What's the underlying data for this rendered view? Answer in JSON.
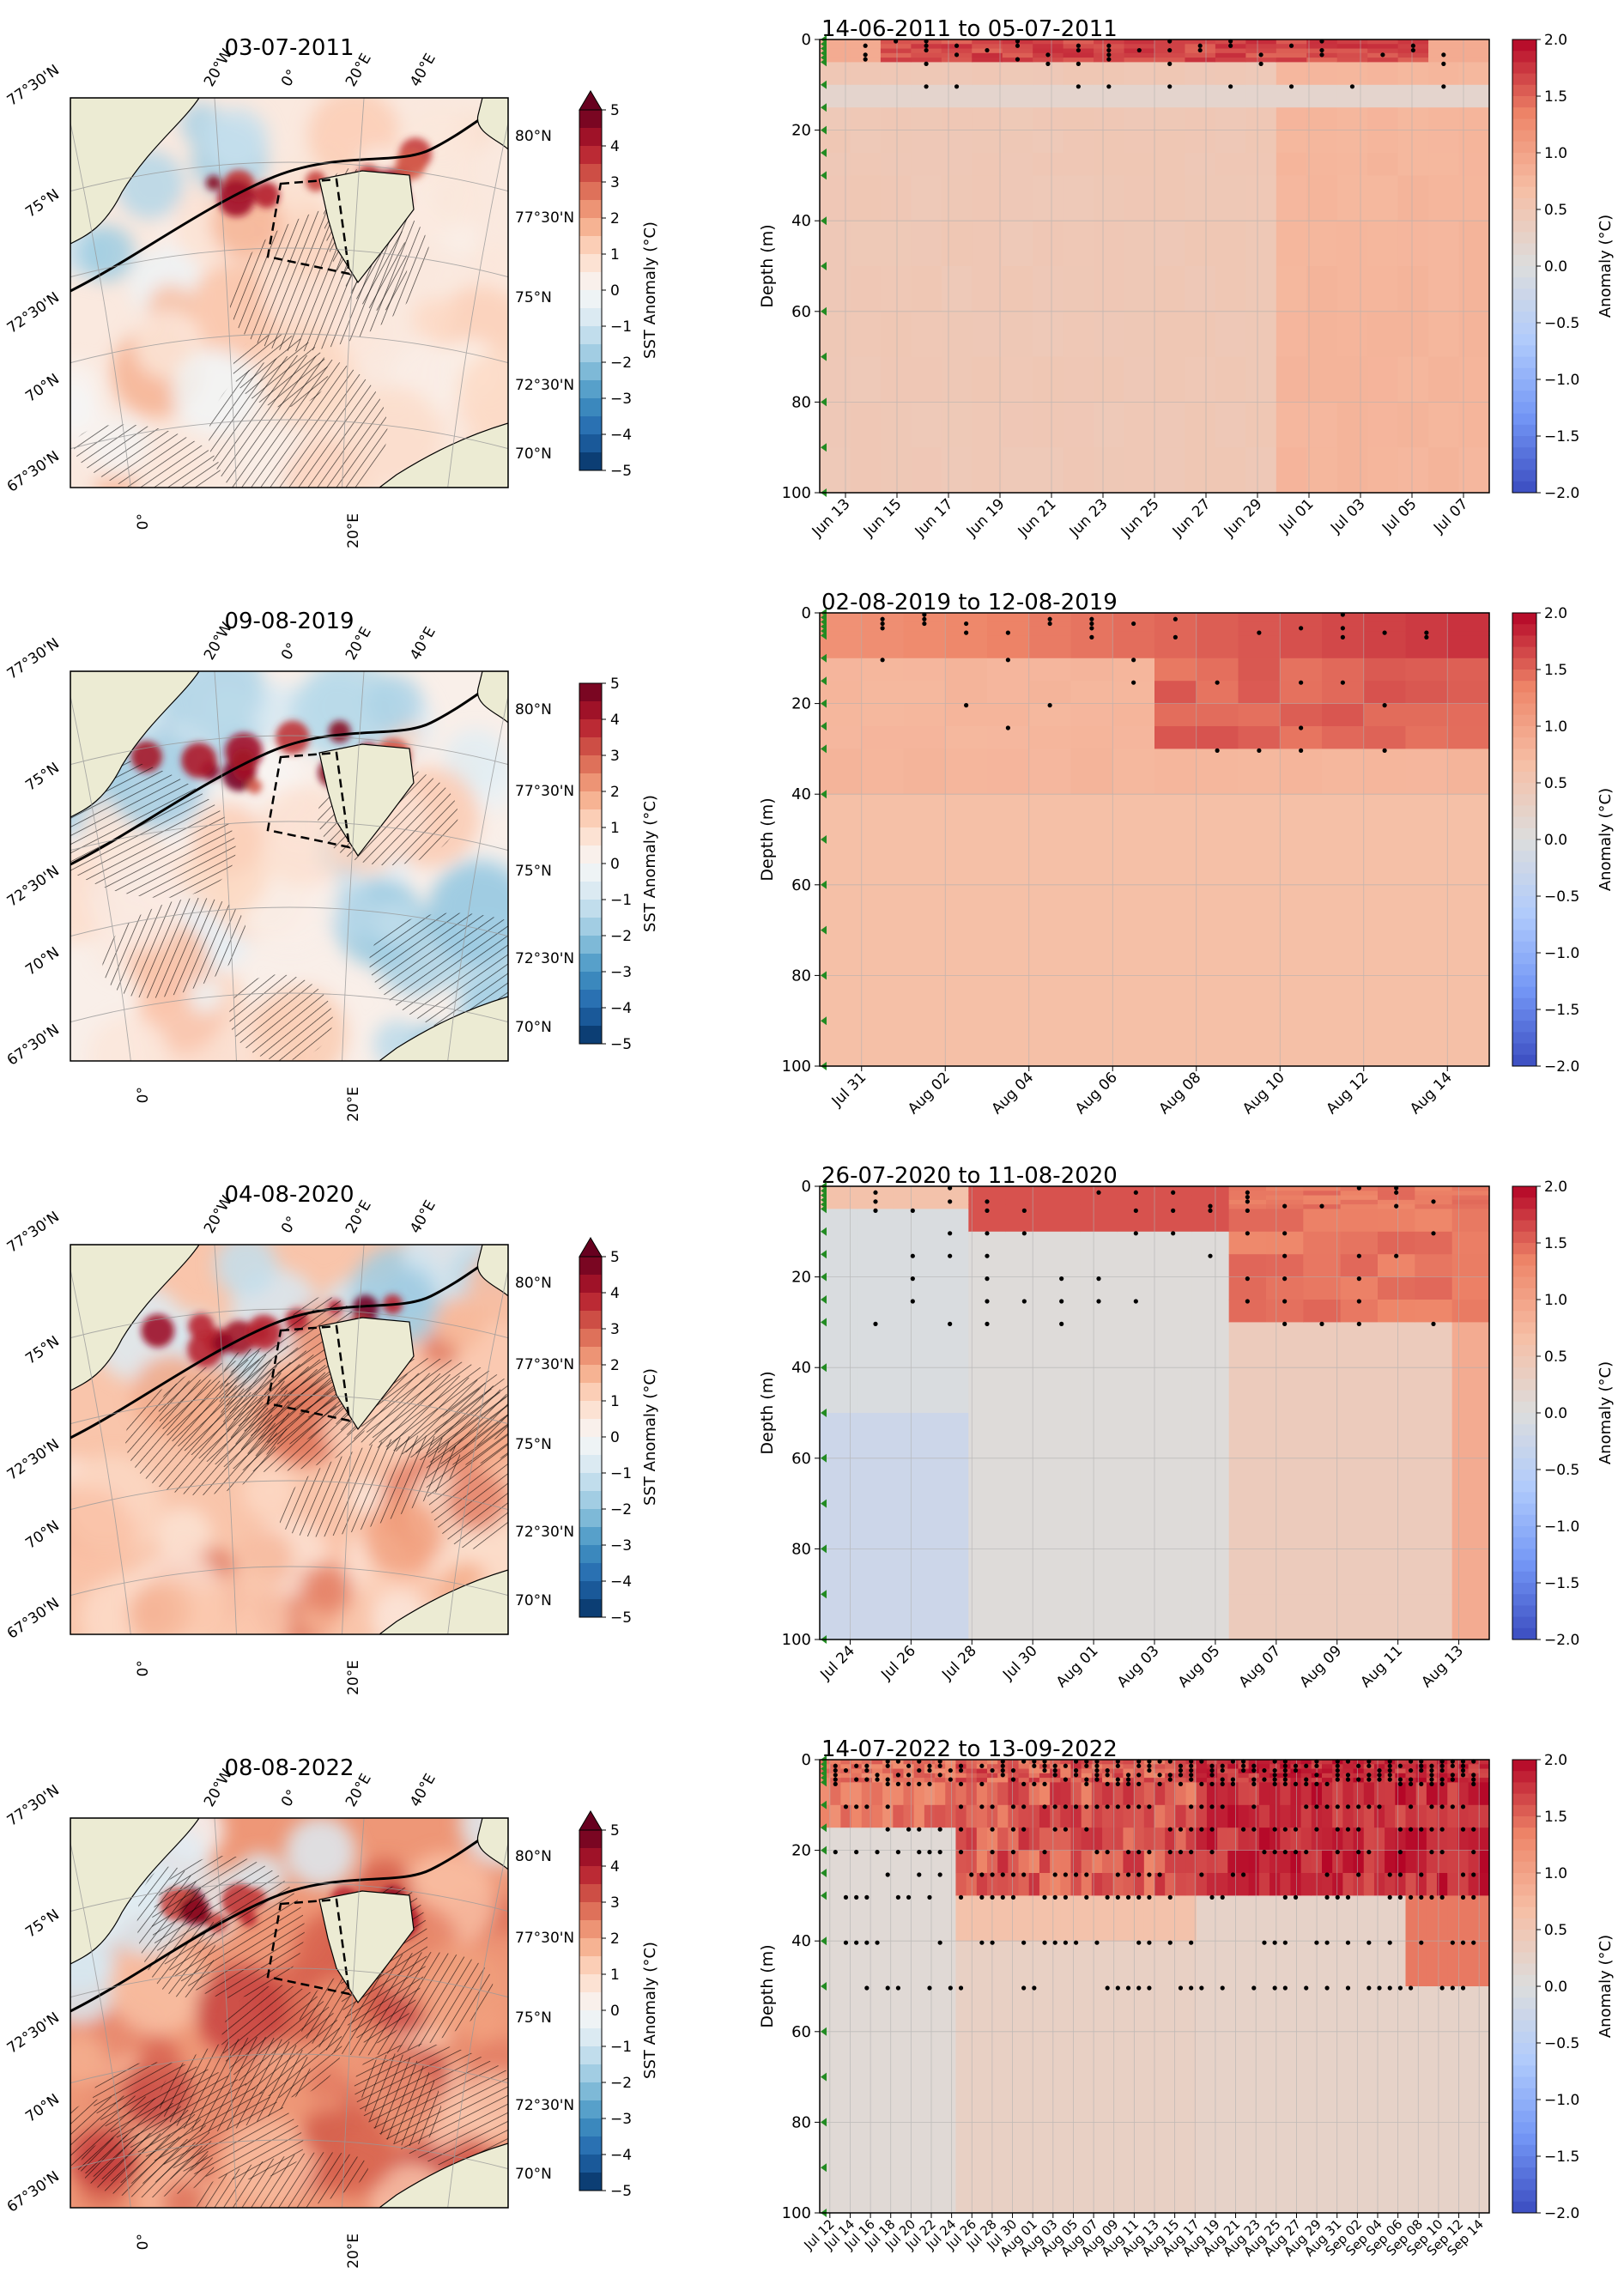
{
  "colors": {
    "land": "#ecebd3",
    "heat_cmap": [
      "#053061",
      "#2166ac",
      "#4393c3",
      "#92c5de",
      "#d1e5f0",
      "#f7f7f7",
      "#fddbc7",
      "#f4a582",
      "#d6604d",
      "#b2182b",
      "#67001f"
    ],
    "cw_cmap": [
      "#3b4cc0",
      "#7396f5",
      "#b0cbfc",
      "#dcdddd",
      "#f6bfa6",
      "#ee8669",
      "#b40426"
    ],
    "marker": "#228b22"
  },
  "chart_data": [
    {
      "type": "heatmap",
      "kind": "map",
      "title": "03-07-2011",
      "colorbar": {
        "label": "SST Anomaly (°C)",
        "ticks": [
          "5",
          "4",
          "3",
          "2",
          "1",
          "0",
          "−1",
          "−2",
          "−3",
          "−4",
          "−5"
        ],
        "range": [
          -5,
          5
        ],
        "extend": "max"
      },
      "lon_labels_top": [
        "20°W",
        "0°",
        "20°E",
        "40°E"
      ],
      "lon_labels_bottom": [
        "0°",
        "20°E"
      ],
      "lat_labels_left": [
        "77°30'N",
        "75°N",
        "72°30'N",
        "70°N",
        "67°30'N"
      ],
      "lat_labels_right": [
        "80°N",
        "77°30'N",
        "75°N",
        "72°30'N",
        "70°N"
      ]
    },
    {
      "type": "heatmap",
      "kind": "depth",
      "title": "14-06-2011 to 05-07-2011",
      "x_ticks": [
        "Jun 13",
        "Jun 15",
        "Jun 17",
        "Jun 19",
        "Jun 21",
        "Jun 23",
        "Jun 25",
        "Jun 27",
        "Jun 29",
        "Jul 01",
        "Jul 03",
        "Jul 05",
        "Jul 07"
      ],
      "ylabel": "Depth (m)",
      "y_ticks": [
        "0",
        "20",
        "40",
        "60",
        "80",
        "100"
      ],
      "ylim": [
        100,
        0
      ],
      "colorbar": {
        "label": "Anomaly (°C)",
        "ticks": [
          "2.0",
          "1.5",
          "1.0",
          "0.5",
          "0.0",
          "−0.5",
          "−1.0",
          "−1.5",
          "−2.0"
        ],
        "range": [
          -2,
          2
        ]
      },
      "depth_levels": [
        0,
        1,
        2,
        3,
        4,
        5,
        10,
        15,
        20,
        25,
        30,
        40,
        50,
        60,
        70,
        80,
        90,
        100
      ]
    },
    {
      "type": "heatmap",
      "kind": "map",
      "title": "09-08-2019",
      "colorbar": {
        "label": "SST Anomaly (°C)",
        "ticks": [
          "5",
          "4",
          "3",
          "2",
          "1",
          "0",
          "−1",
          "−2",
          "−3",
          "−4",
          "−5"
        ],
        "range": [
          -5,
          5
        ],
        "extend": "none"
      },
      "lon_labels_top": [
        "20°W",
        "0°",
        "20°E",
        "40°E"
      ],
      "lon_labels_bottom": [
        "0°",
        "20°E"
      ],
      "lat_labels_left": [
        "77°30'N",
        "75°N",
        "72°30'N",
        "70°N",
        "67°30'N"
      ],
      "lat_labels_right": [
        "80°N",
        "77°30'N",
        "75°N",
        "72°30'N",
        "70°N"
      ]
    },
    {
      "type": "heatmap",
      "kind": "depth",
      "title": "02-08-2019 to 12-08-2019",
      "x_ticks": [
        "Jul 31",
        "Aug 02",
        "Aug 04",
        "Aug 06",
        "Aug 08",
        "Aug 10",
        "Aug 12",
        "Aug 14"
      ],
      "ylabel": "Depth (m)",
      "y_ticks": [
        "0",
        "20",
        "40",
        "60",
        "80",
        "100"
      ],
      "ylim": [
        100,
        0
      ],
      "colorbar": {
        "label": "Anomaly (°C)",
        "ticks": [
          "2.0",
          "1.5",
          "1.0",
          "0.5",
          "0.0",
          "−0.5",
          "−1.0",
          "−1.5",
          "−2.0"
        ],
        "range": [
          -2,
          2
        ]
      },
      "depth_levels": [
        0,
        1,
        2,
        3,
        4,
        5,
        10,
        15,
        20,
        25,
        30,
        40,
        50,
        60,
        70,
        80,
        90,
        100
      ]
    },
    {
      "type": "heatmap",
      "kind": "map",
      "title": "04-08-2020",
      "colorbar": {
        "label": "SST Anomaly (°C)",
        "ticks": [
          "5",
          "4",
          "3",
          "2",
          "1",
          "0",
          "−1",
          "−2",
          "−3",
          "−4",
          "−5"
        ],
        "range": [
          -5,
          5
        ],
        "extend": "max"
      },
      "lon_labels_top": [
        "20°W",
        "0°",
        "20°E",
        "40°E"
      ],
      "lon_labels_bottom": [
        "0°",
        "20°E"
      ],
      "lat_labels_left": [
        "77°30'N",
        "75°N",
        "72°30'N",
        "70°N",
        "67°30'N"
      ],
      "lat_labels_right": [
        "80°N",
        "77°30'N",
        "75°N",
        "72°30'N",
        "70°N"
      ]
    },
    {
      "type": "heatmap",
      "kind": "depth",
      "title": "26-07-2020 to 11-08-2020",
      "x_ticks": [
        "Jul 24",
        "Jul 26",
        "Jul 28",
        "Jul 30",
        "Aug 01",
        "Aug 03",
        "Aug 05",
        "Aug 07",
        "Aug 09",
        "Aug 11",
        "Aug 13"
      ],
      "ylabel": "Depth (m)",
      "y_ticks": [
        "0",
        "20",
        "40",
        "60",
        "80",
        "100"
      ],
      "ylim": [
        100,
        0
      ],
      "colorbar": {
        "label": "Anomaly (°C)",
        "ticks": [
          "2.0",
          "1.5",
          "1.0",
          "0.5",
          "0.0",
          "−0.5",
          "−1.0",
          "−1.5",
          "−2.0"
        ],
        "range": [
          -2,
          2
        ]
      },
      "depth_levels": [
        0,
        1,
        2,
        3,
        4,
        5,
        10,
        15,
        20,
        25,
        30,
        40,
        50,
        60,
        70,
        80,
        90,
        100
      ]
    },
    {
      "type": "heatmap",
      "kind": "map",
      "title": "08-08-2022",
      "colorbar": {
        "label": "SST Anomaly (°C)",
        "ticks": [
          "5",
          "4",
          "3",
          "2",
          "1",
          "0",
          "−1",
          "−2",
          "−3",
          "−4",
          "−5"
        ],
        "range": [
          -5,
          5
        ],
        "extend": "max"
      },
      "lon_labels_top": [
        "20°W",
        "0°",
        "20°E",
        "40°E"
      ],
      "lon_labels_bottom": [
        "0°",
        "20°E"
      ],
      "lat_labels_left": [
        "77°30'N",
        "75°N",
        "72°30'N",
        "70°N",
        "67°30'N"
      ],
      "lat_labels_right": [
        "80°N",
        "77°30'N",
        "75°N",
        "72°30'N",
        "70°N"
      ]
    },
    {
      "type": "heatmap",
      "kind": "depth",
      "title": "14-07-2022 to 13-09-2022",
      "x_ticks": [
        "Jul 12",
        "Jul 14",
        "Jul 16",
        "Jul 18",
        "Jul 20",
        "Jul 22",
        "Jul 24",
        "Jul 26",
        "Jul 28",
        "Jul 30",
        "Aug 01",
        "Aug 03",
        "Aug 05",
        "Aug 07",
        "Aug 09",
        "Aug 11",
        "Aug 13",
        "Aug 15",
        "Aug 17",
        "Aug 19",
        "Aug 21",
        "Aug 23",
        "Aug 25",
        "Aug 27",
        "Aug 29",
        "Aug 31",
        "Sep 02",
        "Sep 04",
        "Sep 06",
        "Sep 08",
        "Sep 10",
        "Sep 12",
        "Sep 14"
      ],
      "ylabel": "Depth (m)",
      "y_ticks": [
        "0",
        "20",
        "40",
        "60",
        "80",
        "100"
      ],
      "ylim": [
        100,
        0
      ],
      "colorbar": {
        "label": "Anomaly (°C)",
        "ticks": [
          "2.0",
          "1.5",
          "1.0",
          "0.5",
          "0.0",
          "−0.5",
          "−1.0",
          "−1.5",
          "−2.0"
        ],
        "range": [
          -2,
          2
        ]
      },
      "depth_levels": [
        0,
        1,
        2,
        3,
        4,
        5,
        10,
        15,
        20,
        25,
        30,
        40,
        50,
        60,
        70,
        80,
        90,
        100
      ]
    }
  ]
}
